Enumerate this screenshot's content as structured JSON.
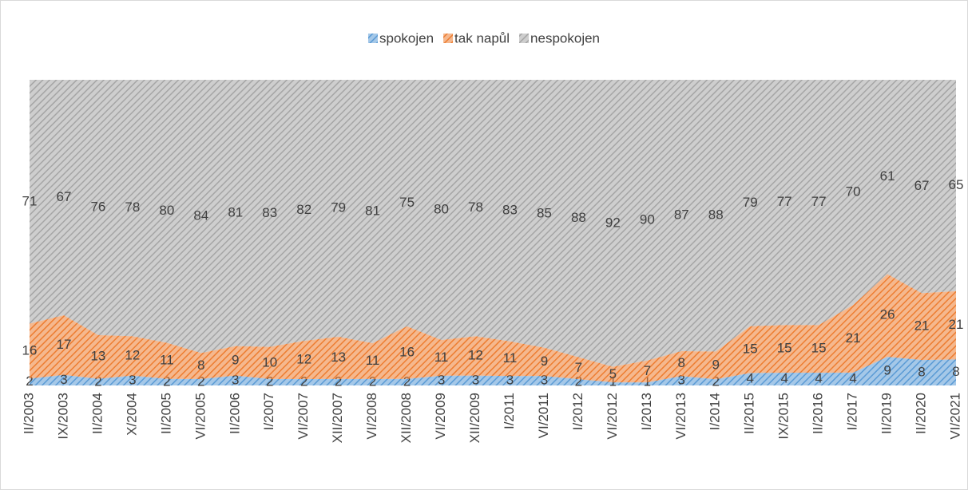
{
  "chart_data": {
    "type": "area",
    "stacking": "percent",
    "categories": [
      "II/2003",
      "IX/2003",
      "II/2004",
      "X/2004",
      "II/2005",
      "VI/2005",
      "II/2006",
      "I/2007",
      "VI/2007",
      "XII/2007",
      "VI/2008",
      "XII/2008",
      "VI/2009",
      "XII/2009",
      "I/2011",
      "VI/2011",
      "I/2012",
      "VI/2012",
      "I/2013",
      "VI/2013",
      "I/2014",
      "II/2015",
      "IX/2015",
      "II/2016",
      "I/2017",
      "II/2019",
      "II/2020",
      "VI/2021"
    ],
    "series": [
      {
        "name": "spokojen",
        "color": "#5b9bd5",
        "values": [
          2,
          3,
          2,
          3,
          2,
          2,
          3,
          2,
          2,
          2,
          2,
          2,
          3,
          3,
          3,
          3,
          2,
          1,
          1,
          3,
          2,
          4,
          4,
          4,
          4,
          9,
          8,
          8
        ]
      },
      {
        "name": "tak napůl",
        "color": "#ed7d31",
        "values": [
          16,
          17,
          13,
          12,
          11,
          8,
          9,
          10,
          12,
          13,
          11,
          16,
          11,
          12,
          11,
          9,
          7,
          5,
          7,
          8,
          9,
          15,
          15,
          15,
          21,
          26,
          21,
          21
        ]
      },
      {
        "name": "nespokojen",
        "color": "#a5a5a5",
        "values": [
          71,
          67,
          76,
          78,
          80,
          84,
          81,
          83,
          82,
          79,
          81,
          75,
          80,
          78,
          83,
          85,
          88,
          92,
          90,
          87,
          88,
          79,
          77,
          77,
          70,
          61,
          67,
          65
        ]
      }
    ],
    "legend": "top"
  }
}
